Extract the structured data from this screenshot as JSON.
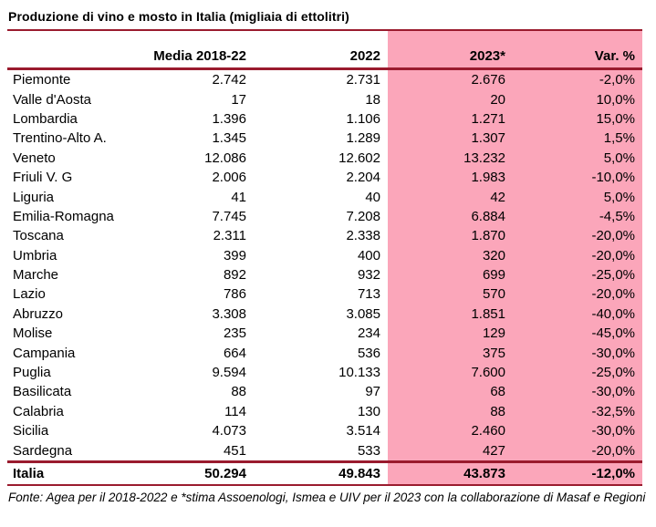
{
  "page_title": "Produzione di vino e mosto in Italia (migliaia di ettolitri)",
  "colors": {
    "rule_line": "#9a1b2e",
    "highlight_pink": "#fba6ba",
    "background": "#ffffff",
    "text": "#000000"
  },
  "chart_data": {
    "type": "table",
    "title": "Produzione di vino e mosto in Italia (migliaia di ettolitri)",
    "columns": [
      "",
      "Media 2018-22",
      "2022",
      "2023*",
      "Var. %"
    ],
    "highlighted_columns": [
      "2023*",
      "Var. %"
    ],
    "rows": [
      [
        "Piemonte",
        "2.742",
        "2.731",
        "2.676",
        "-2,0%"
      ],
      [
        "Valle d'Aosta",
        "17",
        "18",
        "20",
        "10,0%"
      ],
      [
        "Lombardia",
        "1.396",
        "1.106",
        "1.271",
        "15,0%"
      ],
      [
        "Trentino-Alto A.",
        "1.345",
        "1.289",
        "1.307",
        "1,5%"
      ],
      [
        "Veneto",
        "12.086",
        "12.602",
        "13.232",
        "5,0%"
      ],
      [
        "Friuli V. G",
        "2.006",
        "2.204",
        "1.983",
        "-10,0%"
      ],
      [
        "Liguria",
        "41",
        "40",
        "42",
        "5,0%"
      ],
      [
        "Emilia-Romagna",
        "7.745",
        "7.208",
        "6.884",
        "-4,5%"
      ],
      [
        "Toscana",
        "2.311",
        "2.338",
        "1.870",
        "-20,0%"
      ],
      [
        "Umbria",
        "399",
        "400",
        "320",
        "-20,0%"
      ],
      [
        "Marche",
        "892",
        "932",
        "699",
        "-25,0%"
      ],
      [
        "Lazio",
        "786",
        "713",
        "570",
        "-20,0%"
      ],
      [
        "Abruzzo",
        "3.308",
        "3.085",
        "1.851",
        "-40,0%"
      ],
      [
        "Molise",
        "235",
        "234",
        "129",
        "-45,0%"
      ],
      [
        "Campania",
        "664",
        "536",
        "375",
        "-30,0%"
      ],
      [
        "Puglia",
        "9.594",
        "10.133",
        "7.600",
        "-25,0%"
      ],
      [
        "Basilicata",
        "88",
        "97",
        "68",
        "-30,0%"
      ],
      [
        "Calabria",
        "114",
        "130",
        "88",
        "-32,5%"
      ],
      [
        "Sicilia",
        "4.073",
        "3.514",
        "2.460",
        "-30,0%"
      ],
      [
        "Sardegna",
        "451",
        "533",
        "427",
        "-20,0%"
      ]
    ],
    "total_row": [
      "Italia",
      "50.294",
      "49.843",
      "43.873",
      "-12,0%"
    ],
    "source_note": "Fonte: Agea per il 2018-2022 e *stima Assoenologi, Ismea e UIV per il 2023 con la collaborazione di Masaf e Regioni"
  }
}
